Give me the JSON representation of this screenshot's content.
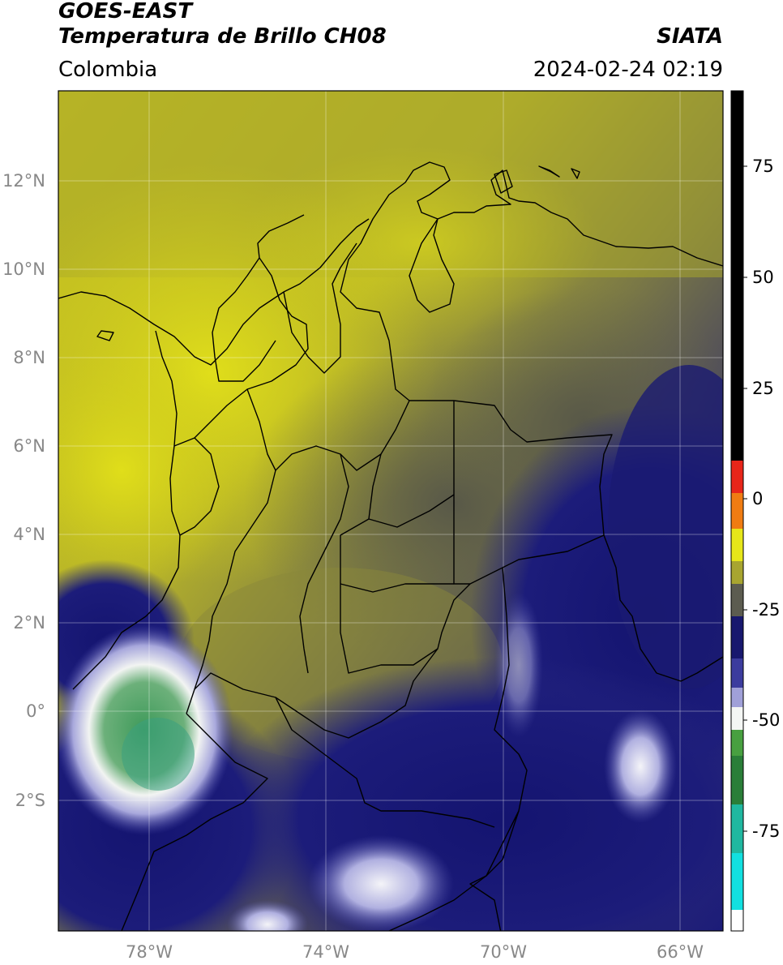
{
  "header": {
    "satellite": "GOES-EAST",
    "product": "Temperatura de Brillo CH08",
    "brand": "SIATA",
    "region": "Colombia",
    "datetime": "2024-02-24 02:19"
  },
  "map": {
    "lat_labels": [
      "12°N",
      "10°N",
      "8°N",
      "6°N",
      "4°N",
      "2°N",
      "0°",
      "2°S"
    ],
    "lon_labels": [
      "78°W",
      "74°W",
      "70°W",
      "66°W"
    ]
  },
  "colorbar": {
    "tick_labels": [
      "75",
      "50",
      "25",
      "0",
      "-25",
      "-50",
      "-75"
    ],
    "colors": {
      "black": "#000000",
      "red": "#e8261a",
      "orange": "#f07c12",
      "yellow": "#e6e61a",
      "olive": "#a8a530",
      "gray": "#5c5c50",
      "navy": "#18186e",
      "blue": "#3c3c9e",
      "lavender": "#a0a0d8",
      "white": "#f4f6f4",
      "green": "#48a040",
      "darkgreen": "#2a7e38",
      "teal": "#20b8a0",
      "cyan": "#12e0e0"
    }
  }
}
